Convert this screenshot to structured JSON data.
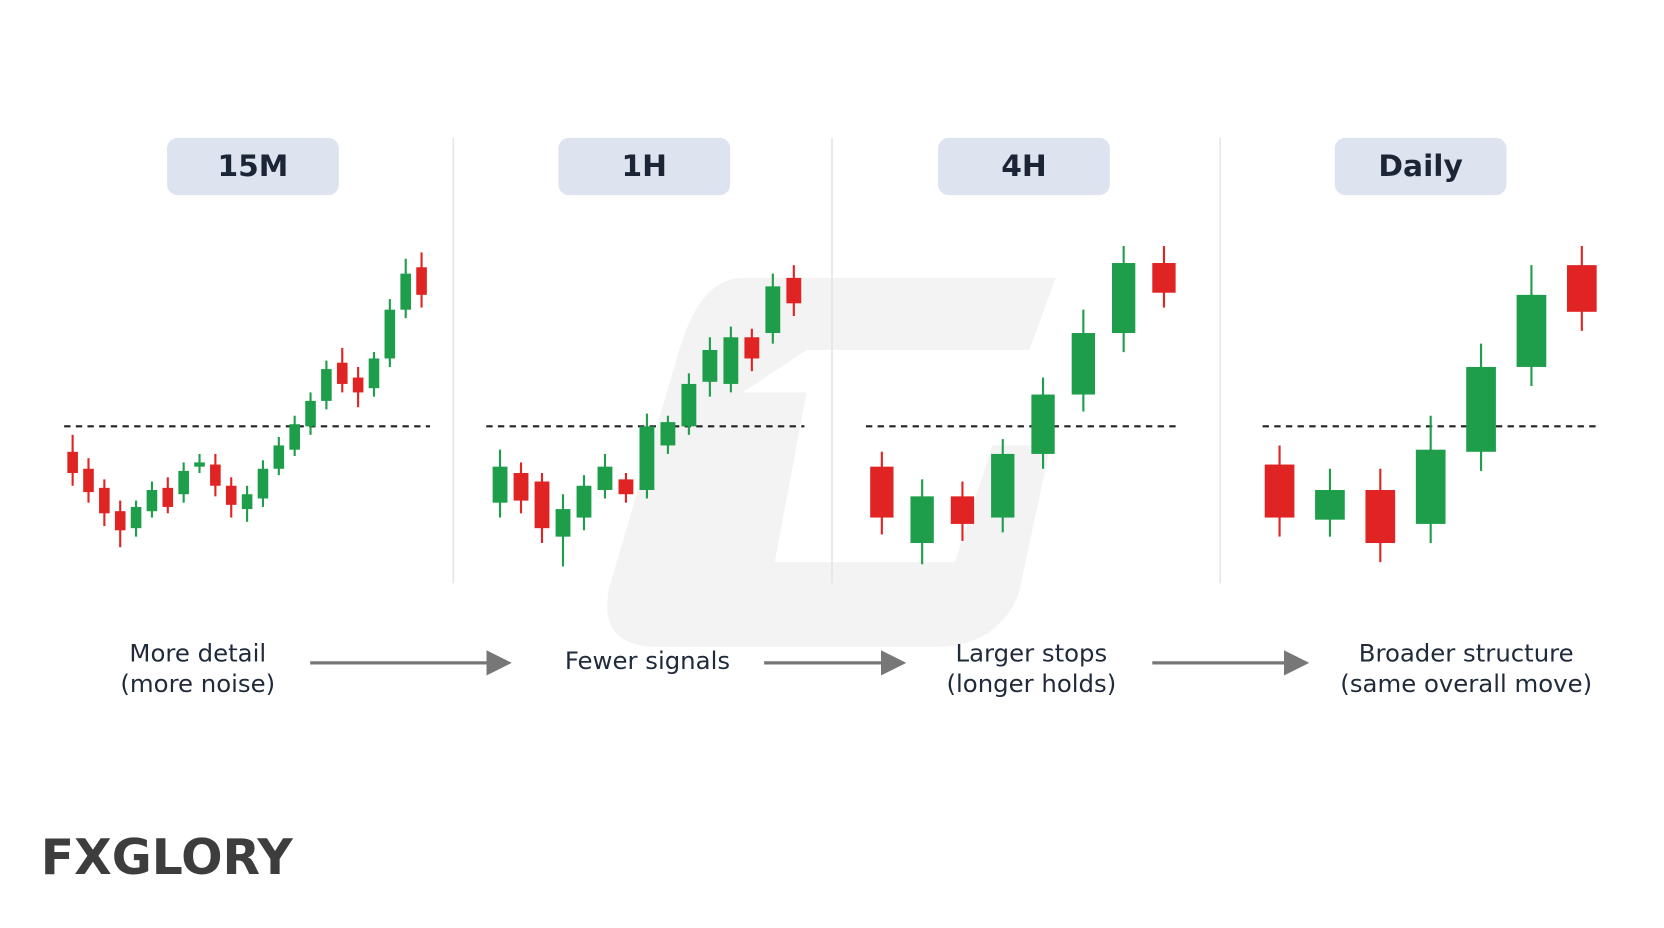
{
  "chart_data": [
    {
      "type": "candlestick",
      "title": "15M",
      "caption": [
        "More detail",
        "(more noise)"
      ],
      "open": [
        134,
        118,
        100,
        78,
        62,
        78,
        100,
        94,
        120,
        122,
        102,
        80,
        90,
        118,
        136,
        158,
        182,
        218,
        204,
        194,
        222,
        268,
        308
      ],
      "high": [
        150,
        128,
        108,
        88,
        88,
        106,
        110,
        124,
        132,
        132,
        110,
        102,
        126,
        148,
        168,
        190,
        220,
        232,
        214,
        228,
        278,
        316,
        322
      ],
      "low": [
        102,
        86,
        64,
        44,
        54,
        72,
        76,
        86,
        114,
        92,
        72,
        68,
        82,
        112,
        130,
        150,
        174,
        190,
        176,
        186,
        214,
        260,
        270
      ],
      "close": [
        114,
        96,
        76,
        60,
        82,
        98,
        82,
        116,
        124,
        102,
        84,
        94,
        118,
        140,
        160,
        182,
        212,
        198,
        190,
        222,
        268,
        302,
        282
      ],
      "ylim": [
        0,
        340
      ],
      "level": 158,
      "up_color": "#1e9e4a",
      "down_color": "#e02424"
    },
    {
      "type": "candlestick",
      "title": "1H",
      "caption": [
        "Fewer signals"
      ],
      "open": [
        86,
        114,
        106,
        54,
        72,
        98,
        108,
        98,
        140,
        158,
        200,
        198,
        242,
        246,
        298
      ],
      "high": [
        136,
        124,
        114,
        94,
        112,
        132,
        114,
        170,
        168,
        208,
        242,
        252,
        250,
        302,
        310
      ],
      "low": [
        72,
        76,
        48,
        26,
        60,
        90,
        86,
        90,
        132,
        150,
        186,
        190,
        210,
        236,
        262
      ],
      "close": [
        120,
        88,
        62,
        80,
        102,
        120,
        94,
        158,
        162,
        198,
        230,
        242,
        222,
        290,
        274
      ],
      "ylim": [
        0,
        340
      ],
      "level": 158,
      "up_color": "#1e9e4a",
      "down_color": "#e02424"
    },
    {
      "type": "candlestick",
      "title": "4H",
      "caption": [
        "Larger stops",
        "(longer holds)"
      ],
      "open": [
        120,
        48,
        92,
        72,
        132,
        188,
        246,
        312
      ],
      "high": [
        134,
        108,
        106,
        146,
        204,
        268,
        328,
        328
      ],
      "low": [
        56,
        28,
        50,
        58,
        118,
        172,
        228,
        270
      ],
      "close": [
        72,
        92,
        66,
        132,
        188,
        246,
        312,
        284
      ],
      "ylim": [
        0,
        340
      ],
      "level": 158,
      "up_color": "#1e9e4a",
      "down_color": "#e02424"
    },
    {
      "type": "candlestick",
      "title": "Daily",
      "caption": [
        "Broader structure",
        "(same overall move)"
      ],
      "open": [
        122,
        70,
        98,
        66,
        134,
        214,
        310
      ],
      "high": [
        140,
        118,
        118,
        168,
        236,
        310,
        328
      ],
      "low": [
        54,
        54,
        30,
        48,
        116,
        196,
        248
      ],
      "close": [
        72,
        98,
        48,
        136,
        214,
        282,
        266
      ],
      "ylim": [
        0,
        340
      ],
      "level": 158,
      "up_color": "#1e9e4a",
      "down_color": "#e02424"
    }
  ],
  "logo": "FXGLORY"
}
